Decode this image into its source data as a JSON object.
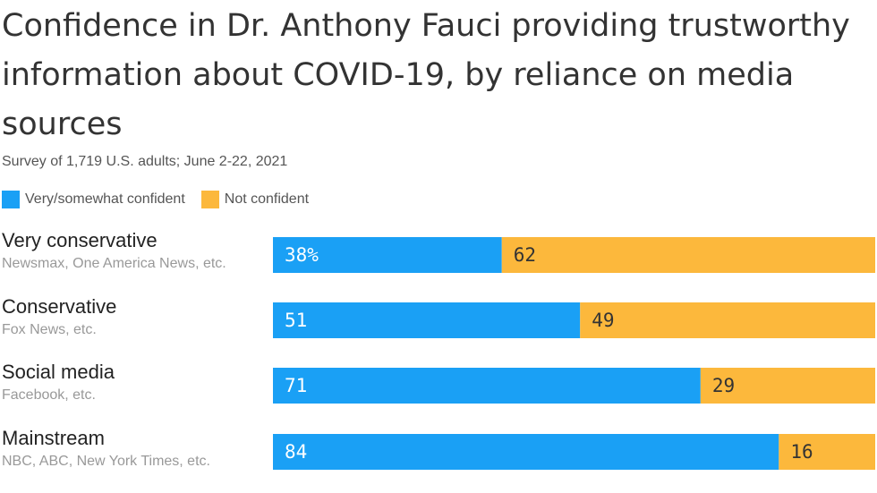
{
  "chart_data": {
    "type": "bar",
    "orientation": "horizontal",
    "stacked": true,
    "title": "Confidence in Dr. Anthony Fauci providing trustworthy information about COVID-19, by reliance on media sources",
    "subtitle": "Survey of 1,719 U.S. adults; June 2-22, 2021",
    "legend_position": "top-left",
    "grid": false,
    "xlim": [
      0,
      100
    ],
    "categories": [
      {
        "name": "Very conservative",
        "sub": "Newsmax, One America News, etc."
      },
      {
        "name": "Conservative",
        "sub": "Fox News, etc."
      },
      {
        "name": "Social media",
        "sub": "Facebook, etc."
      },
      {
        "name": "Mainstream",
        "sub": "NBC, ABC, New York Times, etc."
      }
    ],
    "series": [
      {
        "name": "Very/somewhat confident",
        "color": "#1aa0f5",
        "values": [
          38,
          51,
          71,
          84
        ],
        "labels": [
          "38%",
          "51",
          "71",
          "84"
        ],
        "label_color": "#ffffff"
      },
      {
        "name": "Not confident",
        "color": "#fcb83c",
        "values": [
          62,
          49,
          29,
          16
        ],
        "labels": [
          "62",
          "49",
          "29",
          "16"
        ],
        "label_color": "#333333"
      }
    ]
  }
}
